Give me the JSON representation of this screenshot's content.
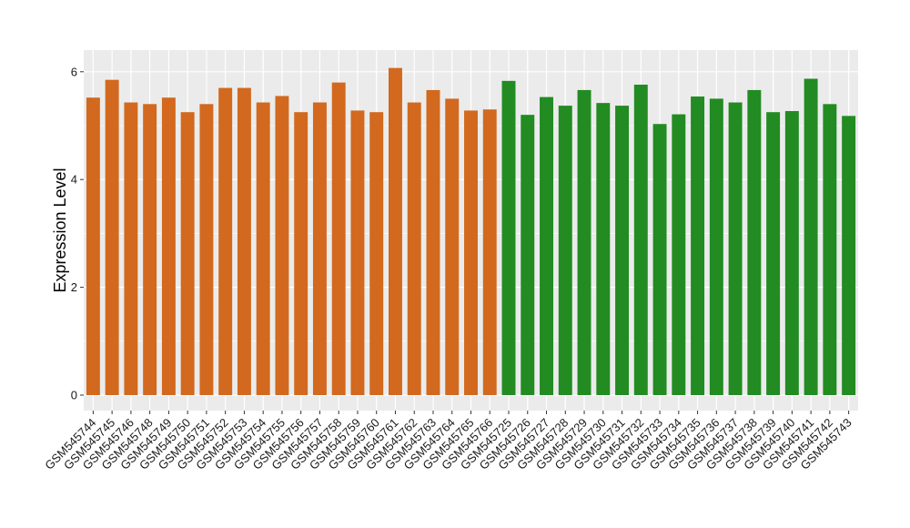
{
  "chart_data": {
    "type": "bar",
    "title": "",
    "xlabel": "",
    "ylabel": "Expression Level",
    "ylim": [
      0,
      6.3
    ],
    "yticks": [
      0,
      2,
      4,
      6
    ],
    "grid": true,
    "legend": "none",
    "panel_background": "#ebebeb",
    "categories": [
      "GSM545744",
      "GSM545745",
      "GSM545746",
      "GSM545748",
      "GSM545749",
      "GSM545750",
      "GSM545751",
      "GSM545752",
      "GSM545753",
      "GSM545754",
      "GSM545755",
      "GSM545756",
      "GSM545757",
      "GSM545758",
      "GSM545759",
      "GSM545760",
      "GSM545761",
      "GSM545762",
      "GSM545763",
      "GSM545764",
      "GSM545765",
      "GSM545766",
      "GSM545725",
      "GSM545726",
      "GSM545727",
      "GSM545728",
      "GSM545729",
      "GSM545730",
      "GSM545731",
      "GSM545732",
      "GSM545733",
      "GSM545734",
      "GSM545735",
      "GSM545736",
      "GSM545737",
      "GSM545738",
      "GSM545739",
      "GSM545740",
      "GSM545741",
      "GSM545742",
      "GSM545743"
    ],
    "values": [
      5.52,
      5.85,
      5.43,
      5.4,
      5.52,
      5.25,
      5.4,
      5.7,
      5.7,
      5.43,
      5.55,
      5.25,
      5.43,
      5.8,
      5.28,
      5.25,
      6.07,
      5.43,
      5.66,
      5.5,
      5.28,
      5.3,
      5.83,
      5.2,
      5.53,
      5.37,
      5.66,
      5.42,
      5.37,
      5.76,
      5.03,
      5.21,
      5.54,
      5.5,
      5.43,
      5.66,
      5.25,
      5.27,
      5.87,
      5.4,
      5.18
    ],
    "bar_colors": [
      "#d2691e",
      "#d2691e",
      "#d2691e",
      "#d2691e",
      "#d2691e",
      "#d2691e",
      "#d2691e",
      "#d2691e",
      "#d2691e",
      "#d2691e",
      "#d2691e",
      "#d2691e",
      "#d2691e",
      "#d2691e",
      "#d2691e",
      "#d2691e",
      "#d2691e",
      "#d2691e",
      "#d2691e",
      "#d2691e",
      "#d2691e",
      "#d2691e",
      "#228b22",
      "#228b22",
      "#228b22",
      "#228b22",
      "#228b22",
      "#228b22",
      "#228b22",
      "#228b22",
      "#228b22",
      "#228b22",
      "#228b22",
      "#228b22",
      "#228b22",
      "#228b22",
      "#228b22",
      "#228b22",
      "#228b22",
      "#228b22",
      "#228b22"
    ]
  }
}
